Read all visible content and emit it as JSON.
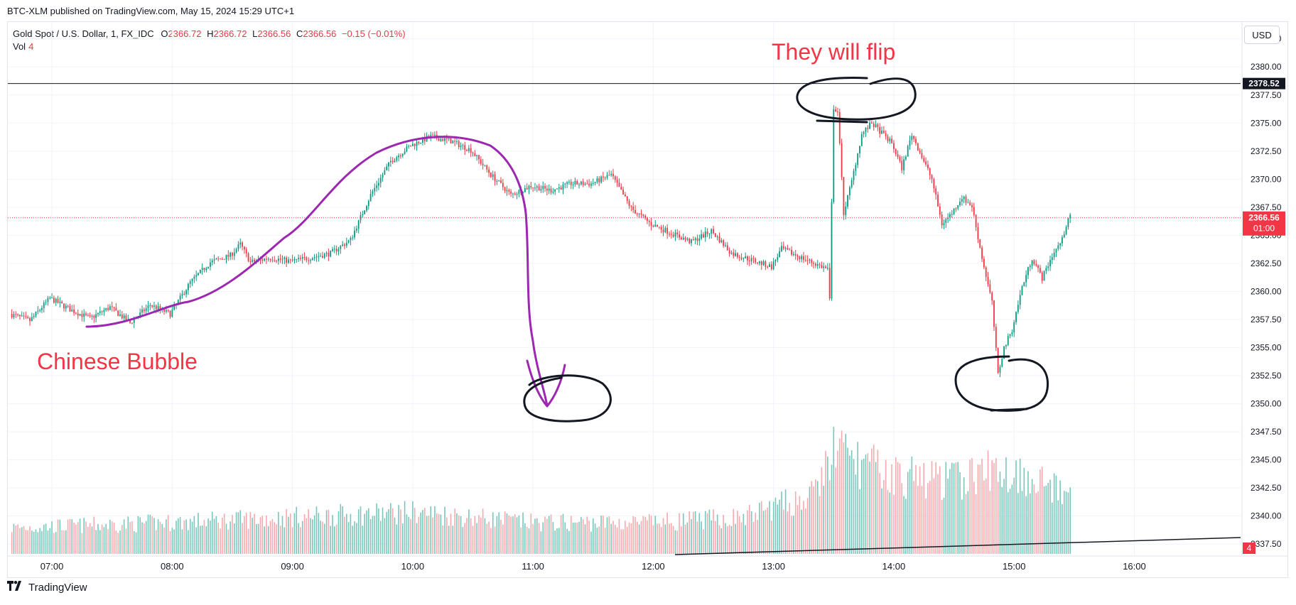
{
  "header": {
    "published": "BTC-XLM published on TradingView.com, May 15, 2024 15:29 UTC+1"
  },
  "legend": {
    "symbol": "Gold Spot / U.S. Dollar, 1, FX_IDC",
    "o_label": "O",
    "o_value": "2366.72",
    "h_label": "H",
    "h_value": "2366.72",
    "l_label": "L",
    "l_value": "2366.56",
    "c_label": "C",
    "c_value": "2366.56",
    "change": "−0.15 (−0.01%)",
    "vol_label": "Vol",
    "vol_value": "4"
  },
  "scale": {
    "currency": "USD"
  },
  "footer": {
    "brand": "TradingView"
  },
  "colors": {
    "up": "#089981",
    "down": "#f23645",
    "up_vol": "#79c7bb",
    "down_vol": "#f7a9ae",
    "annotation_purple": "#9c27b0",
    "annotation_red": "#f23645"
  },
  "chart_data": {
    "type": "candlestick",
    "title": "",
    "x_ticks": [
      "07:00",
      "08:00",
      "09:00",
      "10:00",
      "11:00",
      "12:00",
      "13:00",
      "14:00",
      "15:00",
      "16:00"
    ],
    "y_ticks": [
      "2382.50",
      "2380.00",
      "2377.50",
      "2375.00",
      "2372.50",
      "2370.00",
      "2367.50",
      "2365.00",
      "2362.50",
      "2360.00",
      "2357.50",
      "2355.00",
      "2352.50",
      "2350.00",
      "2347.50",
      "2345.00",
      "2342.50",
      "2340.00",
      "2337.50"
    ],
    "ylim": [
      2336.5,
      2384.0
    ],
    "xlim": [
      "06:38",
      "16:53"
    ],
    "price_path": [
      {
        "t": "06:40",
        "p": 2358.0
      },
      {
        "t": "06:50",
        "p": 2357.4
      },
      {
        "t": "07:00",
        "p": 2359.4
      },
      {
        "t": "07:10",
        "p": 2358.4
      },
      {
        "t": "07:20",
        "p": 2357.6
      },
      {
        "t": "07:30",
        "p": 2358.6
      },
      {
        "t": "07:40",
        "p": 2357.2
      },
      {
        "t": "07:50",
        "p": 2358.8
      },
      {
        "t": "08:00",
        "p": 2358.0
      },
      {
        "t": "08:10",
        "p": 2360.8
      },
      {
        "t": "08:20",
        "p": 2362.6
      },
      {
        "t": "08:30",
        "p": 2363.2
      },
      {
        "t": "08:35",
        "p": 2364.2
      },
      {
        "t": "08:40",
        "p": 2362.6
      },
      {
        "t": "08:50",
        "p": 2363.0
      },
      {
        "t": "09:00",
        "p": 2362.7
      },
      {
        "t": "09:10",
        "p": 2363.0
      },
      {
        "t": "09:20",
        "p": 2363.4
      },
      {
        "t": "09:30",
        "p": 2364.6
      },
      {
        "t": "09:40",
        "p": 2368.6
      },
      {
        "t": "09:50",
        "p": 2371.6
      },
      {
        "t": "10:00",
        "p": 2373.0
      },
      {
        "t": "10:10",
        "p": 2373.8
      },
      {
        "t": "10:20",
        "p": 2373.4
      },
      {
        "t": "10:30",
        "p": 2372.6
      },
      {
        "t": "10:40",
        "p": 2370.4
      },
      {
        "t": "10:50",
        "p": 2368.6
      },
      {
        "t": "11:00",
        "p": 2369.4
      },
      {
        "t": "11:10",
        "p": 2369.0
      },
      {
        "t": "11:20",
        "p": 2369.6
      },
      {
        "t": "11:30",
        "p": 2369.6
      },
      {
        "t": "11:40",
        "p": 2370.4
      },
      {
        "t": "11:50",
        "p": 2367.4
      },
      {
        "t": "12:00",
        "p": 2366.0
      },
      {
        "t": "12:10",
        "p": 2365.2
      },
      {
        "t": "12:20",
        "p": 2364.4
      },
      {
        "t": "12:30",
        "p": 2365.4
      },
      {
        "t": "12:40",
        "p": 2363.4
      },
      {
        "t": "12:50",
        "p": 2362.8
      },
      {
        "t": "13:00",
        "p": 2362.2
      },
      {
        "t": "13:05",
        "p": 2363.8
      },
      {
        "t": "13:20",
        "p": 2362.6
      },
      {
        "t": "13:28",
        "p": 2362.0
      },
      {
        "t": "13:29",
        "p": 2359.2
      },
      {
        "t": "13:31",
        "p": 2376.4
      },
      {
        "t": "13:33",
        "p": 2376.0
      },
      {
        "t": "13:36",
        "p": 2367.0
      },
      {
        "t": "13:40",
        "p": 2369.8
      },
      {
        "t": "13:45",
        "p": 2374.0
      },
      {
        "t": "13:50",
        "p": 2375.0
      },
      {
        "t": "14:00",
        "p": 2373.2
      },
      {
        "t": "14:05",
        "p": 2371.0
      },
      {
        "t": "14:10",
        "p": 2374.0
      },
      {
        "t": "14:20",
        "p": 2370.0
      },
      {
        "t": "14:25",
        "p": 2366.0
      },
      {
        "t": "14:30",
        "p": 2367.0
      },
      {
        "t": "14:35",
        "p": 2368.4
      },
      {
        "t": "14:40",
        "p": 2367.6
      },
      {
        "t": "14:45",
        "p": 2363.0
      },
      {
        "t": "14:50",
        "p": 2359.0
      },
      {
        "t": "14:53",
        "p": 2352.6
      },
      {
        "t": "14:56",
        "p": 2355.0
      },
      {
        "t": "15:00",
        "p": 2356.6
      },
      {
        "t": "15:05",
        "p": 2360.4
      },
      {
        "t": "15:10",
        "p": 2363.0
      },
      {
        "t": "15:15",
        "p": 2361.2
      },
      {
        "t": "15:20",
        "p": 2363.2
      },
      {
        "t": "15:25",
        "p": 2364.6
      },
      {
        "t": "15:28",
        "p": 2366.6
      }
    ],
    "volume_profile": [
      {
        "t": "06:40",
        "v": 0.25
      },
      {
        "t": "08:00",
        "v": 0.3
      },
      {
        "t": "09:00",
        "v": 0.35
      },
      {
        "t": "10:00",
        "v": 0.4
      },
      {
        "t": "11:00",
        "v": 0.3
      },
      {
        "t": "12:00",
        "v": 0.3
      },
      {
        "t": "12:45",
        "v": 0.35
      },
      {
        "t": "13:00",
        "v": 0.45
      },
      {
        "t": "13:20",
        "v": 0.55
      },
      {
        "t": "13:30",
        "v": 1.0
      },
      {
        "t": "13:45",
        "v": 0.85
      },
      {
        "t": "14:00",
        "v": 0.75
      },
      {
        "t": "14:30",
        "v": 0.7
      },
      {
        "t": "14:50",
        "v": 0.8
      },
      {
        "t": "15:10",
        "v": 0.75
      },
      {
        "t": "15:28",
        "v": 0.5
      }
    ],
    "last_price_label": "2366.56",
    "last_price_countdown": "01:00",
    "last_price": 2366.56,
    "horizontal_line_label": "2378.52",
    "horizontal_line": 2378.52,
    "volume_last_label": "4",
    "annotations": [
      {
        "text": "Chinese Bubble",
        "color": "#f23645"
      },
      {
        "text": "They will flip",
        "color": "#f23645"
      }
    ]
  }
}
